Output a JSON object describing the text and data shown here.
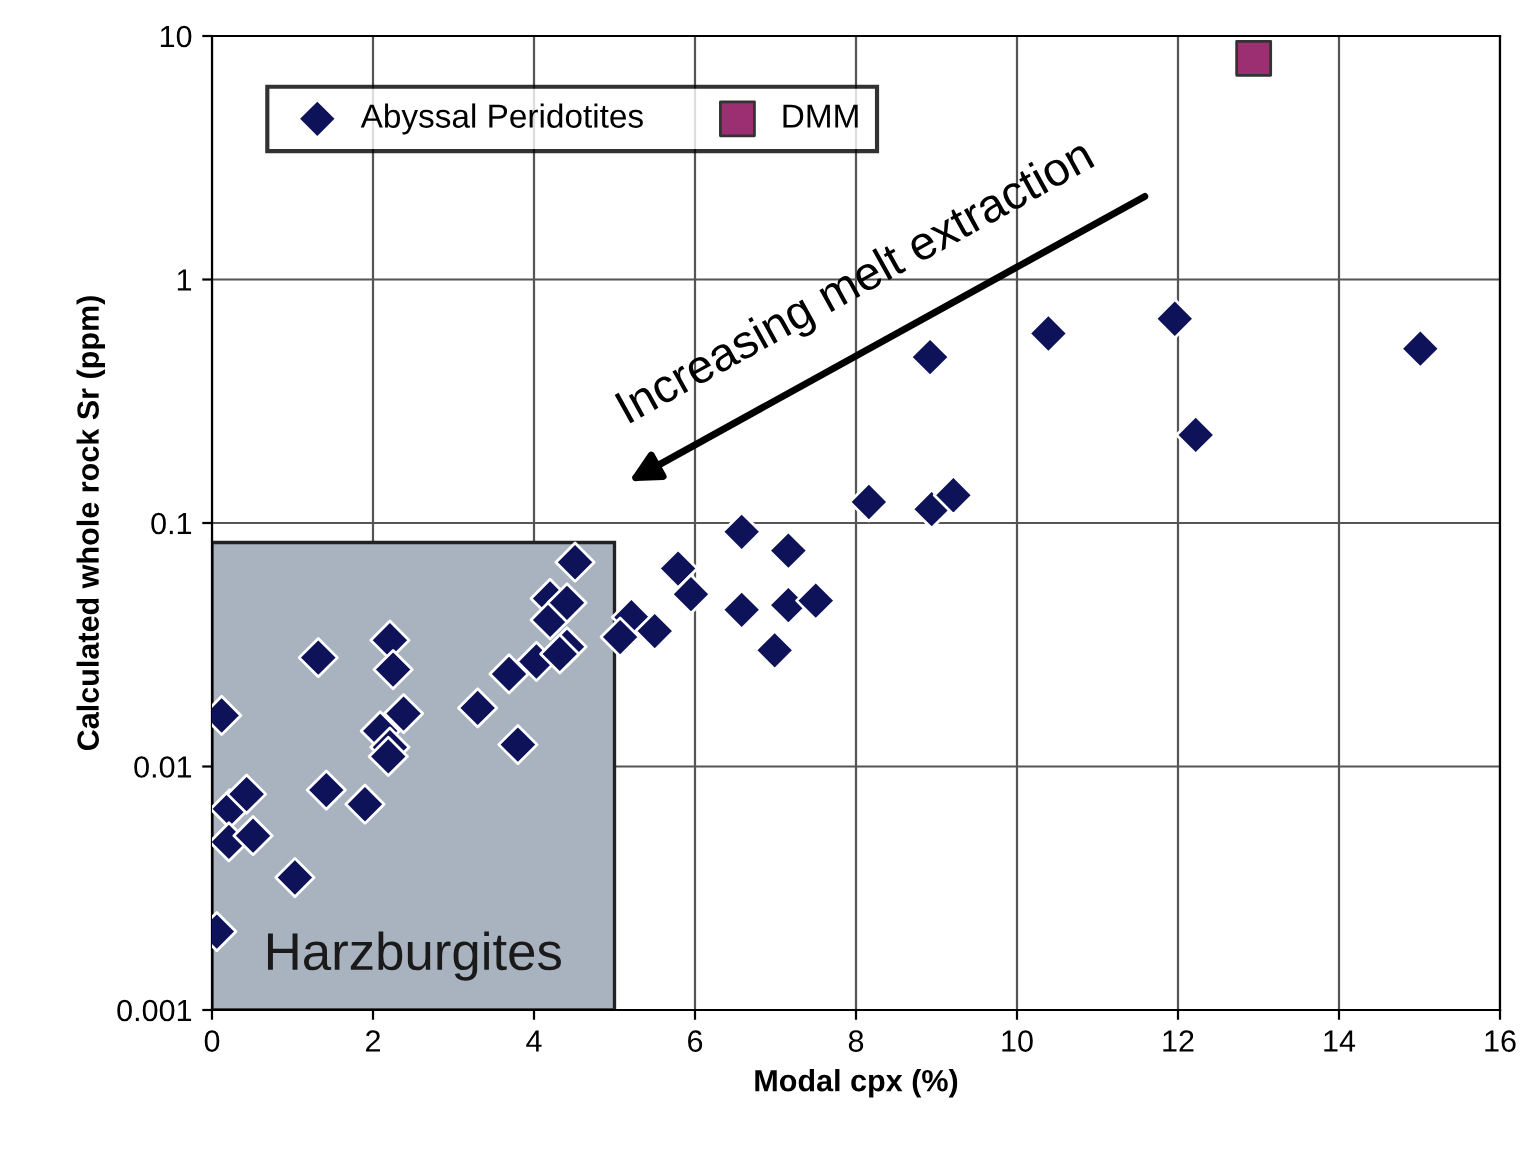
{
  "chart_data": {
    "type": "scatter",
    "xlabel": "Modal cpx (%)",
    "ylabel": "Calculated whole rock Sr (ppm)",
    "log": "y",
    "grid": true,
    "legend": "top left",
    "xlim": [
      0,
      16
    ],
    "xticks": [
      0,
      2,
      4,
      6,
      8,
      10,
      12,
      14,
      16
    ],
    "ylim": [
      0.001,
      10
    ],
    "yticks": [
      {
        "value": 0.001,
        "label": "0.001"
      },
      {
        "value": 0.01,
        "label": "0.01"
      },
      {
        "value": 0.1,
        "label": "0.1"
      },
      1,
      10
    ],
    "bands": [
      {
        "axis": "x",
        "from": 0,
        "to": 5,
        "label": "Harzburgites",
        "color": "#a9b3bf"
      }
    ],
    "annotations": [
      "Increasing melt extraction"
    ],
    "series": [
      {
        "name": "Abyssal Peridotites",
        "color": "#0d1259",
        "marker": "diamond",
        "x": [
          0.06,
          0.12,
          0.22,
          0.43,
          0.21,
          0.51,
          1.03,
          1.32,
          1.42,
          1.9,
          2.21,
          2.25,
          2.09,
          2.21,
          2.19,
          2.38,
          3.3,
          3.69,
          3.8,
          4.03,
          4.2,
          4.2,
          4.41,
          4.41,
          4.51,
          4.32,
          5.21,
          5.07,
          5.5,
          5.79,
          5.95,
          6.58,
          6.58,
          7.16,
          7.16,
          7.5,
          6.99,
          8.16,
          8.92,
          8.94,
          9.21,
          10.39,
          11.96,
          12.22,
          15.01
        ],
        "values": [
          0.0021,
          0.0162,
          0.0067,
          0.0077,
          0.0049,
          0.0052,
          0.0035,
          0.028,
          0.008,
          0.007,
          0.033,
          0.025,
          0.014,
          0.012,
          0.011,
          0.0165,
          0.0174,
          0.024,
          0.0123,
          0.027,
          0.049,
          0.04,
          0.047,
          0.031,
          0.069,
          0.029,
          0.041,
          0.034,
          0.036,
          0.065,
          0.051,
          0.092,
          0.044,
          0.077,
          0.046,
          0.048,
          0.03,
          0.122,
          0.48,
          0.114,
          0.13,
          0.6,
          0.69,
          0.23,
          0.52
        ]
      },
      {
        "name": "DMM",
        "color": "#9b2f72",
        "marker": "square",
        "x": [
          12.94
        ],
        "values": [
          8.1
        ]
      }
    ]
  }
}
